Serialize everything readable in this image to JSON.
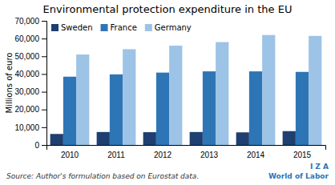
{
  "chart_data": {
    "type": "bar",
    "title": "Environmental protection expenditure in the EU",
    "y_label": "Millions of euro",
    "annotations": [
      "Source: Author's formulation based on Eurostat data.",
      "I Z A",
      "World of Labor"
    ],
    "categories": [
      "2010",
      "2011",
      "2012",
      "2013",
      "2014",
      "2015"
    ],
    "series": [
      {
        "name": "Sweden",
        "color": "#1e3f6f",
        "values": [
          6200,
          7300,
          7200,
          7300,
          7100,
          7800
        ]
      },
      {
        "name": "France",
        "color": "#2e75b6",
        "values": [
          38500,
          39800,
          40800,
          41500,
          41500,
          41200
        ]
      },
      {
        "name": "Germany",
        "color": "#9dc3e6",
        "values": [
          51000,
          54000,
          56000,
          58000,
          62000,
          61500
        ]
      }
    ],
    "ylim": [
      0,
      70000
    ],
    "yticks": [
      0,
      {
        "value": 10000,
        "label": "10,000"
      },
      {
        "value": 20000,
        "label": "20,000"
      },
      {
        "value": 30000,
        "label": "30,000"
      },
      {
        "value": 40000,
        "label": "40,000"
      },
      {
        "value": 50000,
        "label": "50,000"
      },
      {
        "value": 60000,
        "label": "60,000"
      },
      {
        "value": 70000,
        "label": "70,000"
      }
    ],
    "grid": false,
    "legend": "upper left"
  }
}
